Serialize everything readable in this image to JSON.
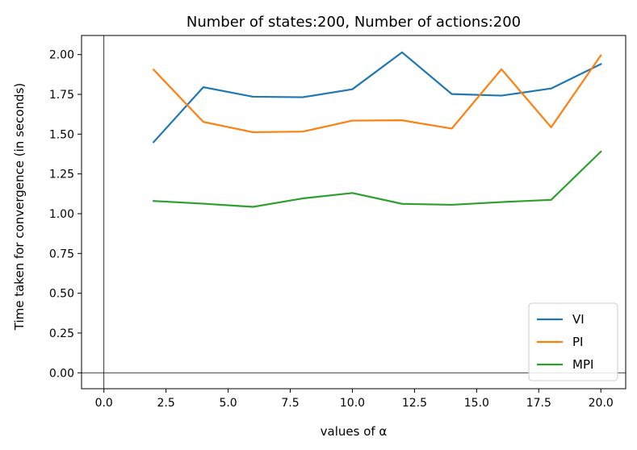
{
  "chart_data": {
    "type": "line",
    "title": "Number of states:200, Number of actions:200",
    "xlabel": "values of α",
    "ylabel": "Time taken for convergence (in seconds)",
    "x": [
      2,
      4,
      6,
      8,
      10,
      12,
      14,
      16,
      18,
      20
    ],
    "xlim": [
      -0.9,
      21.0
    ],
    "ylim": [
      -0.1,
      2.12
    ],
    "xticks": [
      0.0,
      2.5,
      5.0,
      7.5,
      10.0,
      12.5,
      15.0,
      17.5,
      20.0
    ],
    "xtick_labels": [
      "0.0",
      "2.5",
      "5.0",
      "7.5",
      "10.0",
      "12.5",
      "15.0",
      "17.5",
      "20.0"
    ],
    "yticks": [
      0.0,
      0.25,
      0.5,
      0.75,
      1.0,
      1.25,
      1.5,
      1.75,
      2.0
    ],
    "ytick_labels": [
      "0.00",
      "0.25",
      "0.50",
      "0.75",
      "1.00",
      "1.25",
      "1.50",
      "1.75",
      "2.00"
    ],
    "reference_lines": {
      "x": 0,
      "y": 0
    },
    "grid": false,
    "legend_position": "lower-right",
    "series": [
      {
        "name": "VI",
        "color": "#1f77b4",
        "values": [
          1.45,
          1.795,
          1.735,
          1.732,
          1.782,
          2.014,
          1.752,
          1.742,
          1.787,
          1.94
        ]
      },
      {
        "name": "PI",
        "color": "#ff7f0e",
        "values": [
          1.905,
          1.577,
          1.512,
          1.516,
          1.585,
          1.587,
          1.535,
          1.908,
          1.543,
          1.995
        ]
      },
      {
        "name": "MPI",
        "color": "#2ca02c",
        "values": [
          1.08,
          1.063,
          1.043,
          1.096,
          1.13,
          1.062,
          1.056,
          1.073,
          1.087,
          1.39
        ]
      }
    ]
  }
}
